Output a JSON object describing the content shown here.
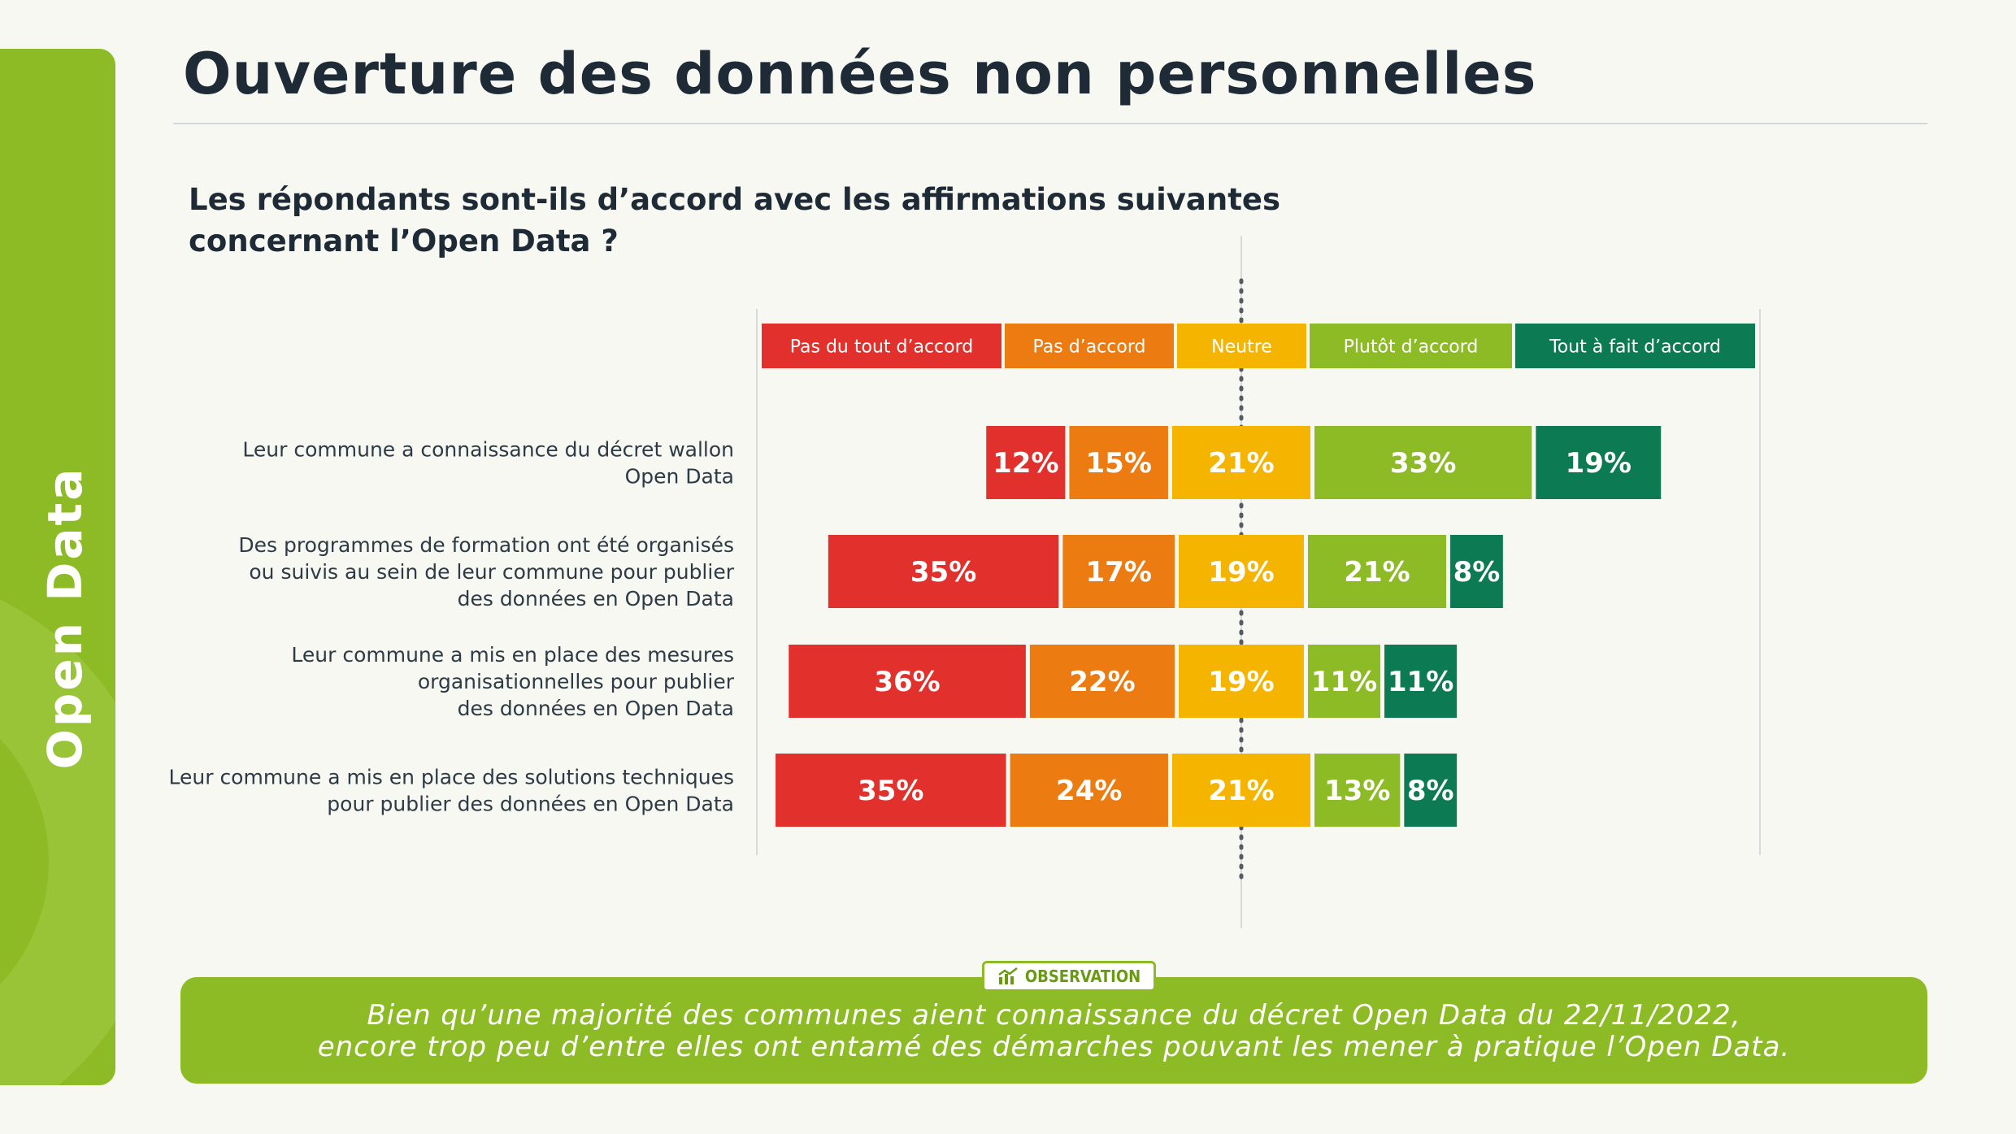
{
  "sidebar": {
    "label": "Open Data"
  },
  "page": {
    "title": "Ouverture des données non personnelles",
    "question_line1": "Les répondants sont-ils d’accord avec les affirmations suivantes",
    "question_line2": "concernant l’Open Data ?"
  },
  "observation": {
    "badge": "OBSERVATION",
    "badge_icon": "chart-icon",
    "line1": "Bien qu’une majorité des communes aient connaissance du décret Open Data du 22/11/2022,",
    "line2": "encore trop peu d’entre elles ont entamé des démarches pouvant les mener à pratique l’Open Data."
  },
  "colors": {
    "brand_green": "#8dbb25",
    "pas_du_tout": "#e2312c",
    "pas": "#ec7c11",
    "neutre": "#f4b400",
    "plutot": "#8dbb25",
    "tout_a_fait": "#0c7b53"
  },
  "chart_data": {
    "type": "bar",
    "orientation": "horizontal",
    "stacked": true,
    "diverging": true,
    "center_category": "Neutre",
    "categories": [
      [
        "Leur commune a connaissance du décret wallon",
        "Open Data"
      ],
      [
        "Des programmes de formation ont été organisés",
        "ou suivis au sein de leur commune pour publier",
        "des données en Open Data"
      ],
      [
        "Leur commune a mis en place des mesures",
        "organisationnelles pour publier",
        "des données en Open Data"
      ],
      [
        "Leur commune a mis en place des solutions techniques",
        "pour publier des données en Open Data"
      ]
    ],
    "series": [
      {
        "name": "Pas du tout d’accord",
        "color": "#e2312c",
        "values": [
          12,
          35,
          36,
          35
        ]
      },
      {
        "name": "Pas d’accord",
        "color": "#ec7c11",
        "values": [
          15,
          17,
          22,
          24
        ]
      },
      {
        "name": "Neutre",
        "color": "#f4b400",
        "values": [
          21,
          19,
          19,
          21
        ]
      },
      {
        "name": "Plutôt d’accord",
        "color": "#8dbb25",
        "values": [
          33,
          21,
          11,
          13
        ]
      },
      {
        "name": "Tout à fait d’accord",
        "color": "#0c7b53",
        "values": [
          19,
          8,
          11,
          8
        ]
      }
    ],
    "value_suffix": "%",
    "legend_position": "top"
  }
}
